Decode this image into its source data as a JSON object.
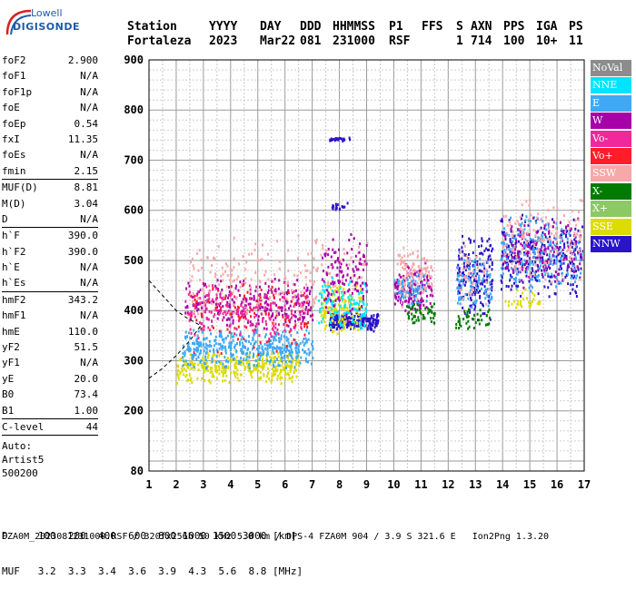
{
  "logo": {
    "line1": "Lowell",
    "line2": "DIGISONDE"
  },
  "header": {
    "row1": [
      "Station",
      "YYYY",
      "DAY",
      "DDD",
      "HHMMSS",
      "P1",
      "FFS",
      "S",
      "AXN",
      "PPS",
      "IGA",
      "PS"
    ],
    "row2": [
      "Fortaleza",
      "2023",
      "Mar22",
      "081",
      "231000",
      "RSF",
      "",
      "1",
      "714",
      "100",
      "10+",
      "11"
    ]
  },
  "params": [
    {
      "k": "foF2",
      "v": "2.900"
    },
    {
      "k": "foF1",
      "v": "N/A"
    },
    {
      "k": "foF1p",
      "v": "N/A"
    },
    {
      "k": "foE",
      "v": "N/A"
    },
    {
      "k": "foEp",
      "v": "0.54"
    },
    {
      "k": "fxI",
      "v": "11.35"
    },
    {
      "k": "foEs",
      "v": "N/A"
    },
    {
      "k": "fmin",
      "v": "2.15"
    },
    {
      "sep": true
    },
    {
      "k": "MUF(D)",
      "v": "8.81"
    },
    {
      "k": "M(D)",
      "v": "3.04"
    },
    {
      "k": "D",
      "v": "N/A"
    },
    {
      "sep": true
    },
    {
      "k": "h`F",
      "v": "390.0"
    },
    {
      "k": "h`F2",
      "v": "390.0"
    },
    {
      "k": "h`E",
      "v": "N/A"
    },
    {
      "k": "h`Es",
      "v": "N/A"
    },
    {
      "sep": true
    },
    {
      "k": "hmF2",
      "v": "343.2"
    },
    {
      "k": "hmF1",
      "v": "N/A"
    },
    {
      "k": "hmE",
      "v": "110.0"
    },
    {
      "k": "yF2",
      "v": "51.5"
    },
    {
      "k": "yF1",
      "v": "N/A"
    },
    {
      "k": "yE",
      "v": "20.0"
    },
    {
      "k": "B0",
      "v": "73.4"
    },
    {
      "k": "B1",
      "v": "1.00"
    },
    {
      "sep": true
    },
    {
      "k": "C-level",
      "v": "44"
    },
    {
      "sep": true
    }
  ],
  "auto": {
    "line1": "Auto:",
    "line2": "Artist5",
    "line3": "500200"
  },
  "legend": [
    {
      "label": "NoVal",
      "color": "#8c8c8c"
    },
    {
      "label": "NNE",
      "color": "#00e5ff"
    },
    {
      "label": "E",
      "color": "#3fa9f5"
    },
    {
      "label": "W",
      "color": "#a800a8"
    },
    {
      "label": "Vo-",
      "color": "#f0289b"
    },
    {
      "label": "Vo+",
      "color": "#ff1e28"
    },
    {
      "label": "SSW",
      "color": "#f7a8a8"
    },
    {
      "label": "X-",
      "color": "#007a00"
    },
    {
      "label": "X+",
      "color": "#8cc864"
    },
    {
      "label": "SSE",
      "color": "#dcdc00"
    },
    {
      "label": "NNW",
      "color": "#2a14c8"
    }
  ],
  "footer": {
    "d_line": "D     100  200  400  600  800 1000 1500 3000 [km]",
    "muf_line": "MUF   3.2  3.3  3.4  3.6  3.9  4.3  5.6  8.8 [MHz]",
    "file_line": "FZA0M_2023081231000.RSF / 320fx256h 50 kHz 5.0 km / DPS-4 FZA0M 904 / 3.9 S 321.6 E   Ion2Png 1.3.20"
  },
  "chart_data": {
    "type": "scatter",
    "xlim": [
      1,
      17
    ],
    "ylim": [
      80,
      900
    ],
    "x_ticks": [
      "1",
      "2",
      "3",
      "4",
      "5",
      "6",
      "7",
      "8",
      "9",
      "10",
      "11",
      "12",
      "13",
      "14",
      "15",
      "16",
      "17"
    ],
    "y_ticks": [
      "80",
      "200",
      "300",
      "400",
      "500",
      "600",
      "700",
      "800",
      "900"
    ],
    "grid": true,
    "clusters": [
      {
        "series": "SSE",
        "f": [
          2.0,
          6.5
        ],
        "h": [
          255,
          325
        ],
        "n": 360
      },
      {
        "series": "E",
        "f": [
          2.2,
          7.0
        ],
        "h": [
          285,
          370
        ],
        "n": 420
      },
      {
        "series": "W",
        "f": [
          2.3,
          7.0
        ],
        "h": [
          360,
          470
        ],
        "n": 260
      },
      {
        "series": "Vo-",
        "f": [
          2.3,
          6.8
        ],
        "h": [
          340,
          460
        ],
        "n": 220
      },
      {
        "series": "SSW",
        "f": [
          2.5,
          9.0
        ],
        "h": [
          380,
          560
        ],
        "n": 220
      },
      {
        "series": "Vo+",
        "f": [
          2.5,
          7.0
        ],
        "h": [
          300,
          480
        ],
        "n": 90
      },
      {
        "series": "NNW",
        "f": [
          7.6,
          9.4
        ],
        "h": [
          360,
          400
        ],
        "n": 220
      },
      {
        "series": "SSE",
        "f": [
          7.3,
          8.8
        ],
        "h": [
          350,
          460
        ],
        "n": 140
      },
      {
        "series": "NNE",
        "f": [
          7.2,
          9.0
        ],
        "h": [
          360,
          470
        ],
        "n": 120
      },
      {
        "series": "W",
        "f": [
          7.3,
          9.0
        ],
        "h": [
          380,
          560
        ],
        "n": 120
      },
      {
        "series": "NNW",
        "f": [
          7.6,
          8.4
        ],
        "h": [
          740,
          750
        ],
        "n": 24
      },
      {
        "series": "NNW",
        "f": [
          7.7,
          8.3
        ],
        "h": [
          600,
          620
        ],
        "n": 16
      },
      {
        "series": "W",
        "f": [
          10.0,
          11.4
        ],
        "h": [
          390,
          500
        ],
        "n": 140
      },
      {
        "series": "SSW",
        "f": [
          10.1,
          11.4
        ],
        "h": [
          400,
          540
        ],
        "n": 110
      },
      {
        "series": "E",
        "f": [
          10.0,
          11.2
        ],
        "h": [
          400,
          480
        ],
        "n": 60
      },
      {
        "series": "X-",
        "f": [
          10.4,
          11.5
        ],
        "h": [
          370,
          420
        ],
        "n": 50
      },
      {
        "series": "NNW",
        "f": [
          12.3,
          13.6
        ],
        "h": [
          380,
          560
        ],
        "n": 180
      },
      {
        "series": "E",
        "f": [
          12.3,
          13.6
        ],
        "h": [
          400,
          520
        ],
        "n": 90
      },
      {
        "series": "X-",
        "f": [
          12.2,
          13.5
        ],
        "h": [
          360,
          410
        ],
        "n": 40
      },
      {
        "series": "SSW",
        "f": [
          12.4,
          13.5
        ],
        "h": [
          400,
          540
        ],
        "n": 40
      },
      {
        "series": "NNW",
        "f": [
          13.9,
          16.9
        ],
        "h": [
          420,
          600
        ],
        "n": 320
      },
      {
        "series": "E",
        "f": [
          13.9,
          16.9
        ],
        "h": [
          430,
          600
        ],
        "n": 200
      },
      {
        "series": "W",
        "f": [
          14.0,
          16.9
        ],
        "h": [
          440,
          600
        ],
        "n": 120
      },
      {
        "series": "SSW",
        "f": [
          14.0,
          16.9
        ],
        "h": [
          440,
          640
        ],
        "n": 140
      },
      {
        "series": "SSE",
        "f": [
          14.0,
          15.5
        ],
        "h": [
          400,
          450
        ],
        "n": 30
      }
    ],
    "profile_curve": {
      "f": [
        1.0,
        1.5,
        2.0,
        2.4,
        2.9
      ],
      "h": [
        460,
        430,
        400,
        385,
        370
      ]
    },
    "virtual_curve": {
      "f": [
        1.0,
        1.5,
        2.0,
        2.5,
        2.9
      ],
      "h": [
        265,
        285,
        310,
        340,
        370
      ]
    }
  }
}
